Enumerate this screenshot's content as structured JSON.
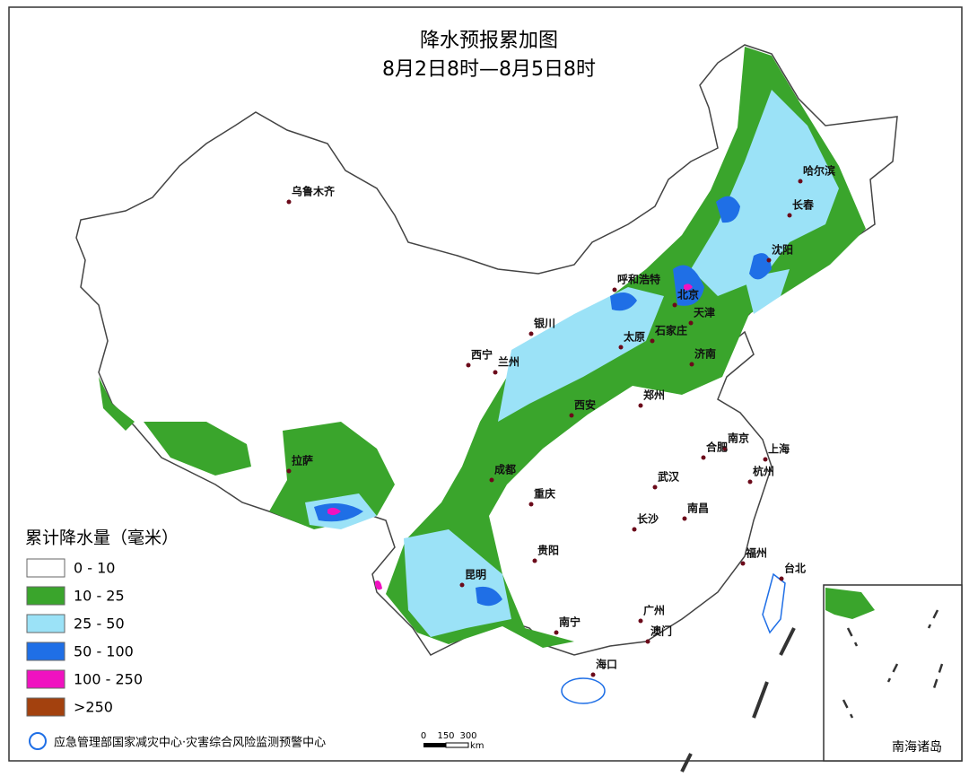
{
  "title": "降水预报累加图",
  "subtitle": "8月2日8时—8月5日8时",
  "cities": [
    "乌鲁木齐",
    "哈尔滨",
    "长春",
    "沈阳",
    "呼和浩特",
    "北京",
    "天津",
    "银川",
    "石家庄",
    "太原",
    "济南",
    "西宁",
    "兰州",
    "郑州",
    "西安",
    "南京",
    "合肥",
    "上海",
    "拉萨",
    "成都",
    "杭州",
    "武汉",
    "重庆",
    "长沙",
    "南昌",
    "贵阳",
    "福州",
    "台北",
    "昆明",
    "南宁",
    "广州",
    "澳门",
    "海口"
  ],
  "legend": {
    "title": "累计降水量（毫米）",
    "items": [
      {
        "label": "0 - 10",
        "color": "#ffffff"
      },
      {
        "label": "10 - 25",
        "color": "#3aa52c"
      },
      {
        "label": "25 - 50",
        "color": "#9be2f7"
      },
      {
        "label": "50 - 100",
        "color": "#1f6fe6"
      },
      {
        "label": "100 - 250",
        "color": "#f012c0"
      },
      {
        "label": ">250",
        "color": "#a3410e"
      }
    ]
  },
  "scale_bar": {
    "ticks": [
      "0",
      "150",
      "300"
    ],
    "unit": "km"
  },
  "inset_label": "南海诸岛",
  "footer": "应急管理部国家减灾中心·灾害综合风险监测预警中心"
}
